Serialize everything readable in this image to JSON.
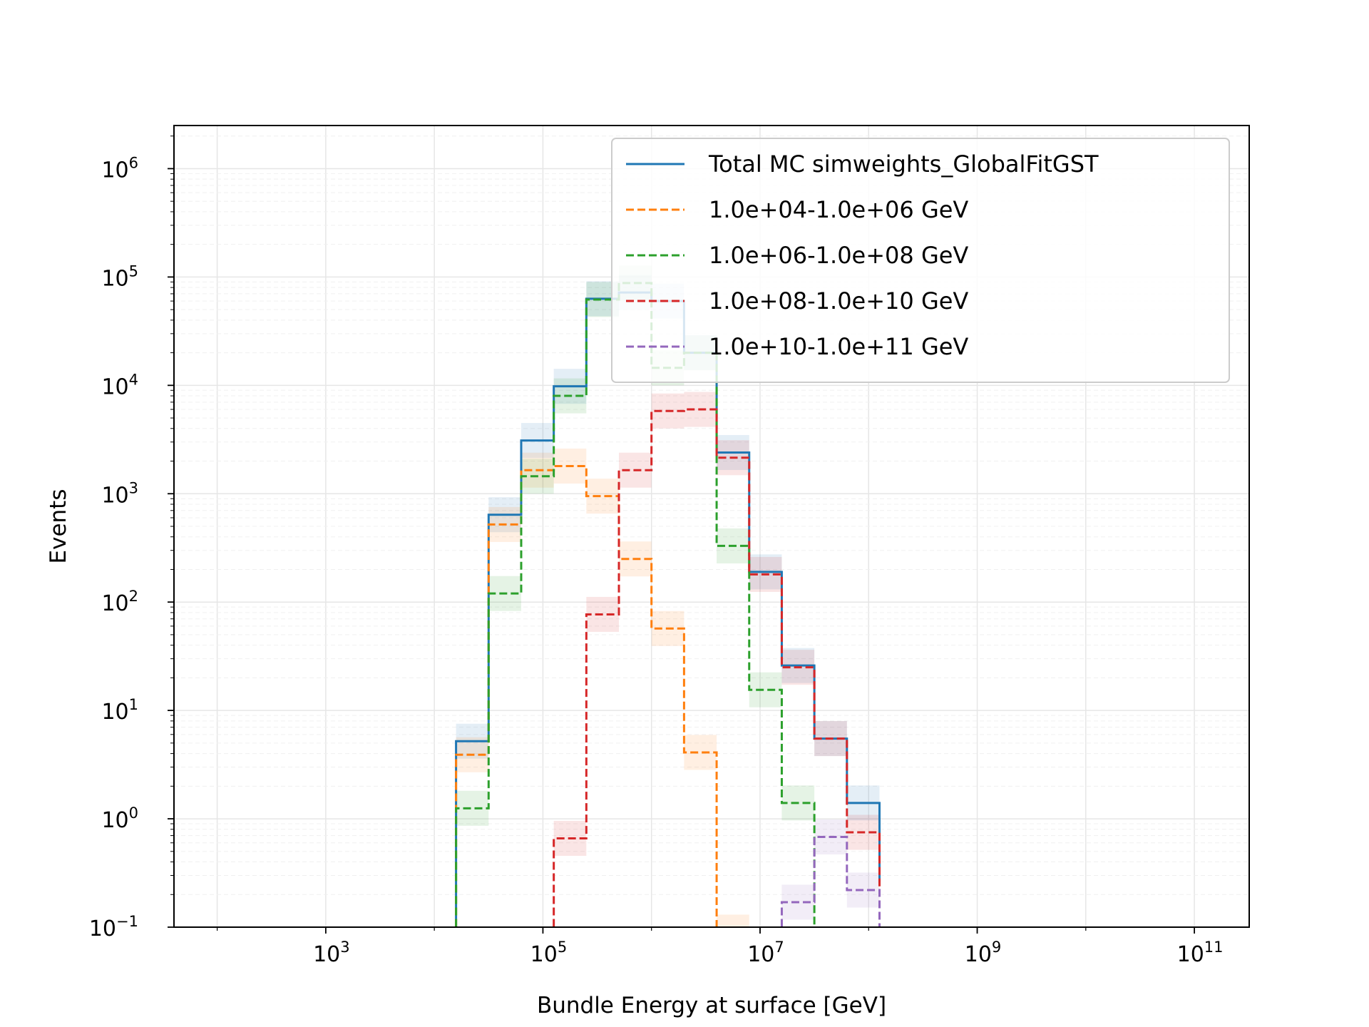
{
  "chart_data": {
    "type": "histogram-step",
    "xlabel": "Bundle Energy at surface [GeV]",
    "ylabel": "Events",
    "xscale": "log",
    "yscale": "log",
    "xlim": [
      40,
      320000000000.0
    ],
    "ylim": [
      0.1,
      2500000.0
    ],
    "grid": true,
    "legend_position": "top-right",
    "x_ticks": [
      {
        "base": "10",
        "exp": "3",
        "value": 1000
      },
      {
        "base": "10",
        "exp": "5",
        "value": 100000
      },
      {
        "base": "10",
        "exp": "7",
        "value": 10000000
      },
      {
        "base": "10",
        "exp": "9",
        "value": 1000000000
      },
      {
        "base": "10",
        "exp": "11",
        "value": 100000000000
      }
    ],
    "y_ticks": [
      {
        "base": "10",
        "exp": "−1",
        "value": 0.1
      },
      {
        "base": "10",
        "exp": "0",
        "value": 1
      },
      {
        "base": "10",
        "exp": "1",
        "value": 10
      },
      {
        "base": "10",
        "exp": "2",
        "value": 100
      },
      {
        "base": "10",
        "exp": "3",
        "value": 1000
      },
      {
        "base": "10",
        "exp": "4",
        "value": 10000
      },
      {
        "base": "10",
        "exp": "5",
        "value": 100000
      },
      {
        "base": "10",
        "exp": "6",
        "value": 1000000
      }
    ],
    "bin_edges": [
      15849,
      31623,
      63096,
      125893,
      251189,
      501187,
      1000000,
      1995262,
      3981072,
      7943282,
      15848932,
      31622777,
      63095734,
      125892541
    ],
    "series": [
      {
        "name": "Total MC simweights_GlobalFitGST",
        "color": "#1f77b4",
        "dash": "solid",
        "values": [
          5.2,
          640,
          3100,
          9800,
          63000,
          72000,
          60000,
          20000,
          2400,
          190,
          26,
          5.5,
          1.4,
          0.26
        ]
      },
      {
        "name": "1.0e+04-1.0e+06 GeV",
        "color": "#ff7f0e",
        "dash": "dashed",
        "values": [
          3.9,
          520,
          1650,
          1800,
          950,
          250,
          57,
          4.1,
          0.09,
          null,
          null,
          null,
          null,
          null
        ]
      },
      {
        "name": "1.0e+06-1.0e+08 GeV",
        "color": "#2ca02c",
        "dash": "dashed",
        "values": [
          1.25,
          120,
          1450,
          8000,
          62000,
          88000,
          14500,
          20000,
          330,
          15.5,
          1.4,
          null,
          null,
          null
        ]
      },
      {
        "name": "1.0e+08-1.0e+10 GeV",
        "color": "#d62728",
        "dash": "dashed",
        "values": [
          null,
          null,
          null,
          0.66,
          77,
          1650,
          5800,
          6000,
          2150,
          180,
          25,
          5.5,
          0.75,
          0.22
        ]
      },
      {
        "name": "1.0e+10-1.0e+11 GeV",
        "color": "#9467bd",
        "dash": "dashed",
        "values": [
          null,
          null,
          null,
          null,
          null,
          null,
          null,
          null,
          null,
          null,
          0.17,
          0.68,
          0.22,
          null
        ]
      }
    ]
  }
}
